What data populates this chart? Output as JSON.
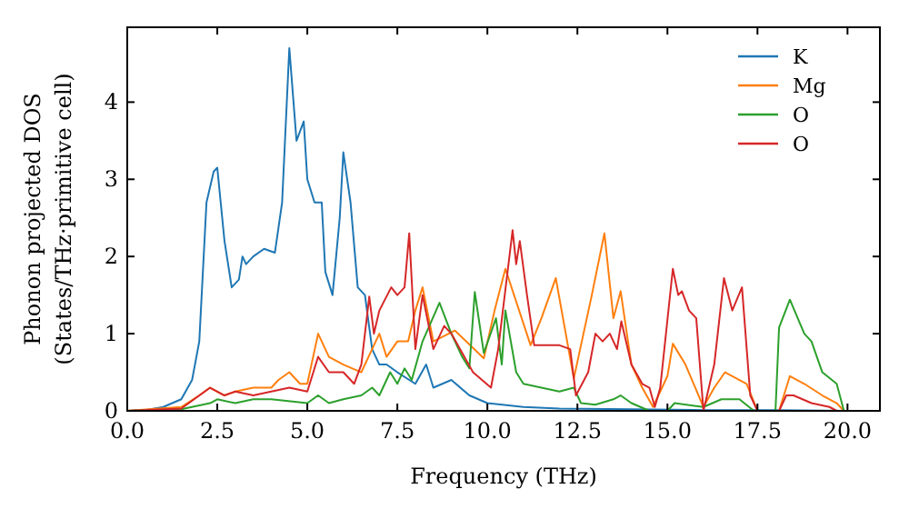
{
  "chart_data": {
    "type": "line",
    "xlabel": "Frequency (THz)",
    "ylabel": "Phonon projected DOS\n(States/THz·primitive cell)",
    "xlim": [
      0,
      20.9
    ],
    "ylim": [
      0,
      4.97
    ],
    "xticks": [
      {
        "value": 0,
        "label": "0.0"
      },
      {
        "value": 2.5,
        "label": "2.5"
      },
      {
        "value": 5,
        "label": "5.0"
      },
      {
        "value": 7.5,
        "label": "7.5"
      },
      {
        "value": 10,
        "label": "10.0"
      },
      {
        "value": 12.5,
        "label": "12.5"
      },
      {
        "value": 15,
        "label": "15.0"
      },
      {
        "value": 17.5,
        "label": "17.5"
      },
      {
        "value": 20,
        "label": "20.0"
      }
    ],
    "yticks": [
      0,
      1,
      2,
      3,
      4
    ],
    "grid": false,
    "legend": "top right",
    "line_style": "solid",
    "series": [
      {
        "name": "K",
        "color": "#1f77b4",
        "x": [
          0,
          0.5,
          1,
          1.5,
          1.8,
          2,
          2.2,
          2.4,
          2.5,
          2.7,
          2.9,
          3.1,
          3.2,
          3.3,
          3.5,
          3.8,
          4.1,
          4.3,
          4.5,
          4.7,
          4.9,
          5,
          5.2,
          5.4,
          5.5,
          5.7,
          5.9,
          6,
          6.2,
          6.4,
          6.6,
          6.8,
          7,
          7.2,
          7.5,
          8,
          8.3,
          8.5,
          9,
          9.5,
          10,
          11,
          12,
          14,
          16,
          18,
          20
        ],
        "values": [
          0,
          0.01,
          0.05,
          0.15,
          0.4,
          0.9,
          2.7,
          3.1,
          3.15,
          2.2,
          1.6,
          1.7,
          2,
          1.9,
          2,
          2.1,
          2.05,
          2.7,
          4.7,
          3.5,
          3.75,
          3,
          2.7,
          2.7,
          1.8,
          1.5,
          2.5,
          3.35,
          2.7,
          1.6,
          1.5,
          0.8,
          0.6,
          0.6,
          0.5,
          0.35,
          0.6,
          0.3,
          0.4,
          0.2,
          0.1,
          0.05,
          0.03,
          0.02,
          0.01,
          0.01,
          0
        ]
      },
      {
        "name": "Mg",
        "color": "#ff7f0e",
        "x": [
          0,
          1.5,
          2,
          2.3,
          2.7,
          3,
          3.5,
          4,
          4.2,
          4.5,
          4.8,
          5,
          5.3,
          5.6,
          6,
          6.5,
          6.8,
          7,
          7.2,
          7.5,
          7.8,
          8,
          8.2,
          8.5,
          9.1,
          9.9,
          10.2,
          10.5,
          11.2,
          11.5,
          11.9,
          12.4,
          12.9,
          13.25,
          13.5,
          13.7,
          14,
          14.3,
          14.6,
          15,
          15.15,
          15.5,
          16,
          16.3,
          16.6,
          17,
          17.2,
          17.5,
          18.1,
          18.4,
          18.8,
          19.3,
          19.7,
          19.9
        ],
        "values": [
          0,
          0.05,
          0.2,
          0.3,
          0.2,
          0.25,
          0.3,
          0.3,
          0.4,
          0.5,
          0.35,
          0.35,
          1,
          0.7,
          0.6,
          0.5,
          0.8,
          1,
          0.7,
          0.9,
          0.9,
          1.3,
          1.6,
          0.9,
          1.04,
          0.68,
          1.3,
          1.84,
          0.85,
          1.2,
          1.72,
          0.42,
          1.5,
          2.3,
          1.2,
          1.55,
          0.6,
          0.3,
          0.05,
          0.45,
          0.87,
          0.6,
          0.05,
          0.3,
          0.5,
          0.4,
          0.35,
          0,
          0,
          0.45,
          0.35,
          0.2,
          0.1,
          0
        ]
      },
      {
        "name": "O",
        "color": "#2ca02c",
        "x": [
          0,
          1.5,
          2.3,
          2.5,
          3,
          3.5,
          4,
          5,
          5.3,
          5.6,
          6,
          6.5,
          6.8,
          7,
          7.3,
          7.5,
          7.7,
          7.9,
          8.2,
          8.67,
          9,
          9.3,
          9.5,
          9.65,
          9.9,
          10.24,
          10.4,
          10.5,
          10.8,
          11,
          11.5,
          12,
          12.4,
          12.6,
          13,
          13.5,
          13.7,
          14,
          14.5,
          15,
          15.2,
          16,
          16.5,
          17,
          17.4,
          18,
          18.1,
          18.4,
          18.8,
          19,
          19.3,
          19.7,
          19.9
        ],
        "values": [
          0,
          0.02,
          0.1,
          0.15,
          0.1,
          0.15,
          0.15,
          0.1,
          0.2,
          0.1,
          0.15,
          0.2,
          0.3,
          0.2,
          0.5,
          0.35,
          0.55,
          0.4,
          0.9,
          1.4,
          1,
          0.7,
          0.55,
          1.54,
          0.75,
          1.2,
          0.6,
          1.3,
          0.5,
          0.35,
          0.3,
          0.25,
          0.3,
          0.1,
          0.08,
          0.15,
          0.2,
          0.1,
          0,
          0,
          0.1,
          0.05,
          0.15,
          0.15,
          0,
          0,
          1.08,
          1.44,
          1,
          0.9,
          0.5,
          0.35,
          0
        ]
      },
      {
        "name": "O",
        "color": "#d62728",
        "x": [
          0,
          1.5,
          2.3,
          2.7,
          3,
          3.5,
          4,
          4.5,
          5,
          5.3,
          5.6,
          6,
          6.3,
          6.5,
          6.72,
          6.85,
          7,
          7.33,
          7.5,
          7.7,
          7.83,
          8,
          8.2,
          8.5,
          8.8,
          9,
          9.3,
          9.6,
          10.1,
          10.3,
          10.7,
          10.8,
          10.9,
          11.1,
          11.3,
          12,
          12.3,
          12.46,
          12.8,
          13,
          13.2,
          13.4,
          13.6,
          13.72,
          14,
          14.3,
          14.5,
          14.65,
          14.8,
          15.15,
          15.3,
          15.4,
          15.6,
          15.8,
          16,
          16.3,
          16.57,
          16.8,
          17.07,
          17.3,
          17.5,
          18.1,
          18.3,
          18.5,
          19,
          19.5,
          19.7
        ],
        "values": [
          0,
          0.03,
          0.3,
          0.2,
          0.25,
          0.2,
          0.25,
          0.3,
          0.25,
          0.7,
          0.5,
          0.5,
          0.35,
          0.6,
          1.48,
          1,
          1.3,
          1.6,
          1.5,
          1.6,
          2.3,
          0.8,
          1.5,
          0.8,
          1.1,
          1,
          0.75,
          0.5,
          0.3,
          0.8,
          2.34,
          1.9,
          2.2,
          1.5,
          0.85,
          0.85,
          0.8,
          0.2,
          0.5,
          1,
          0.9,
          1,
          0.8,
          1.16,
          0.6,
          0.35,
          0.3,
          0.05,
          0.3,
          1.84,
          1.5,
          1.55,
          1.3,
          1.2,
          0,
          0.6,
          1.72,
          1.3,
          1.6,
          0.2,
          0,
          0,
          0.2,
          0.2,
          0.1,
          0.05,
          0
        ]
      }
    ]
  }
}
